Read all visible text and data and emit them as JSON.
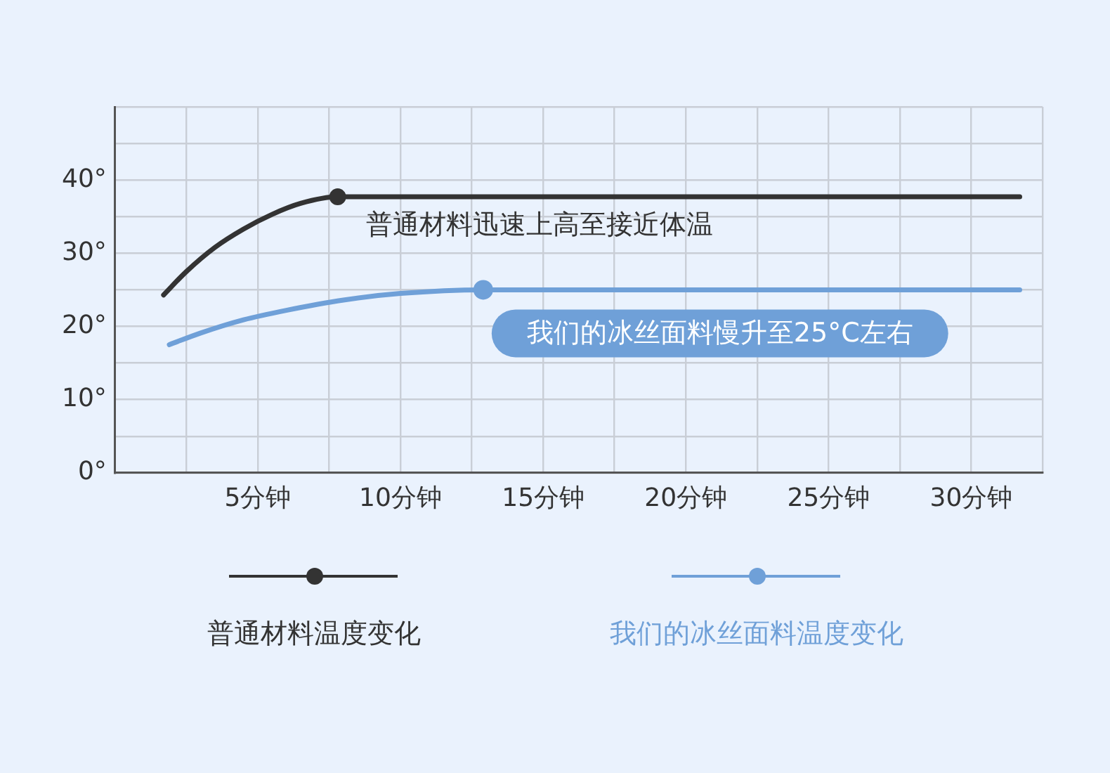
{
  "chart_data": {
    "type": "line",
    "x": [
      1.7,
      2.5,
      3.5,
      4.5,
      5.5,
      6.5,
      7.8,
      10,
      15,
      20,
      25,
      31.7
    ],
    "series": [
      {
        "name": "普通材料温度变化",
        "color": "#333333",
        "values": [
          24.3,
          27.5,
          30.8,
          33.3,
          35.3,
          36.8,
          37.7,
          37.7,
          37.7,
          37.7,
          37.7,
          37.7
        ]
      },
      {
        "name": "我们的冰丝面料温度变化",
        "color": "#6fa0d8",
        "x": [
          1.9,
          3,
          4.5,
          6,
          8,
          10,
          12.9,
          15,
          20,
          25,
          31.7
        ],
        "values": [
          17.5,
          19.1,
          20.9,
          22.2,
          23.6,
          24.5,
          25,
          25,
          25,
          25,
          25
        ]
      }
    ],
    "xlim": [
      0,
      32.5
    ],
    "xticks": [
      {
        "value": 2.5,
        "label": null
      },
      {
        "value": 5,
        "label": "5分钟"
      },
      {
        "value": 7.5,
        "label": null
      },
      {
        "value": 10,
        "label": "10分钟"
      },
      {
        "value": 12.5,
        "label": null
      },
      {
        "value": 15,
        "label": "15分钟"
      },
      {
        "value": 17.5,
        "label": null
      },
      {
        "value": 20,
        "label": "20分钟"
      },
      {
        "value": 22.5,
        "label": null
      },
      {
        "value": 25,
        "label": "25分钟"
      },
      {
        "value": 27.5,
        "label": null
      },
      {
        "value": 30,
        "label": "30分钟"
      },
      {
        "value": 32.5,
        "label": null
      }
    ],
    "ylim": [
      0,
      50
    ],
    "yticks": [
      {
        "value": 0,
        "label": "0°"
      },
      {
        "value": 5,
        "label": null
      },
      {
        "value": 10,
        "label": "10°"
      },
      {
        "value": 15,
        "label": null
      },
      {
        "value": 20,
        "label": "20°"
      },
      {
        "value": 25,
        "label": null
      },
      {
        "value": 30,
        "label": "30°"
      },
      {
        "value": 35,
        "label": null
      },
      {
        "value": 40,
        "label": "40°"
      },
      {
        "value": 45,
        "label": null
      },
      {
        "value": 50,
        "label": null
      }
    ],
    "annotations": [
      {
        "text": "普通材料迅速上高至接近体温",
        "x": 7.8,
        "y": 37.7
      },
      {
        "text": "我们的冰丝面料慢升至25°C左右",
        "x": 12.9,
        "y": 25
      }
    ],
    "grid": true,
    "legend": "bottom",
    "line_style": "solid"
  }
}
